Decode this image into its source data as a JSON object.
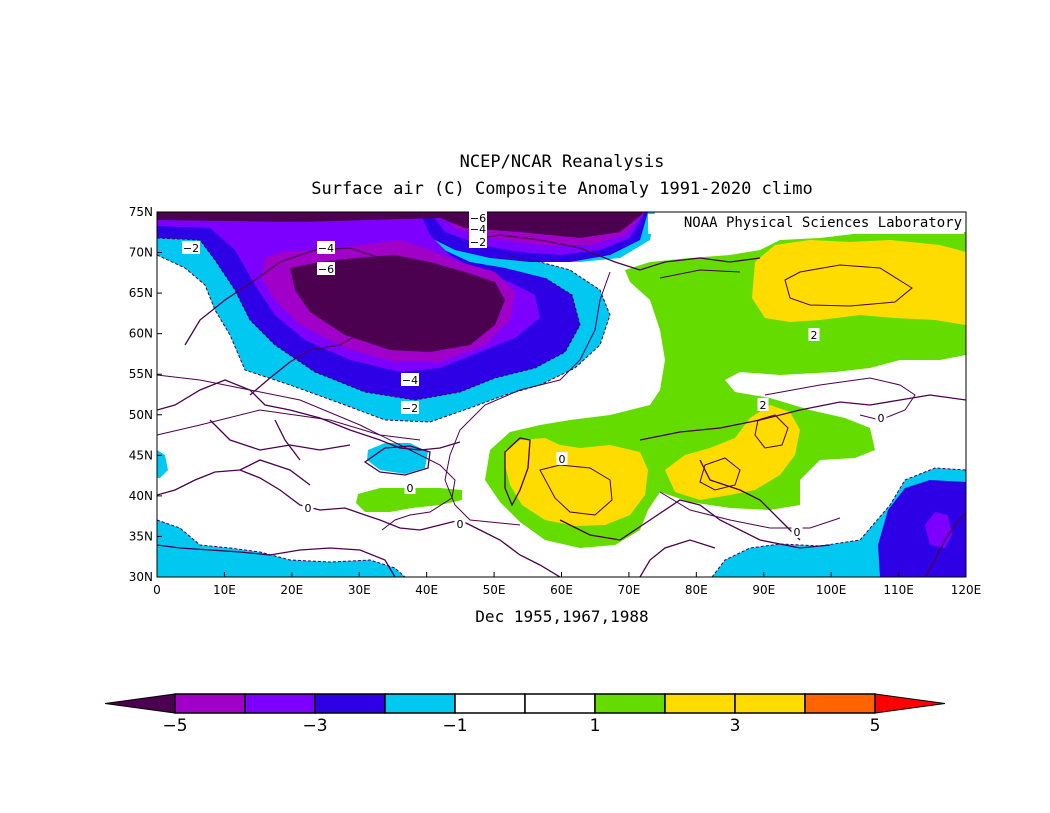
{
  "title": "NCEP/NCAR Reanalysis",
  "subtitle": "Surface air (C) Composite Anomaly 1991-2020 climo",
  "credit": "NOAA Physical Sciences Laboratory",
  "period_label": "Dec 1955,1967,1988",
  "map": {
    "lon_range": [
      0,
      120
    ],
    "lat_range": [
      30,
      75
    ],
    "lon_ticks": [
      "0",
      "10E",
      "20E",
      "30E",
      "40E",
      "50E",
      "60E",
      "70E",
      "80E",
      "90E",
      "100E",
      "110E",
      "120E"
    ],
    "lat_ticks": [
      "30N",
      "35N",
      "40N",
      "45N",
      "50N",
      "55N",
      "60N",
      "65N",
      "70N",
      "75N"
    ],
    "contour_labels": [
      "-6",
      "-4",
      "-2",
      "-2",
      "-4",
      "-6",
      "-4",
      "-2",
      "2",
      "2",
      "0",
      "0",
      "0",
      "0",
      "0",
      "0"
    ]
  },
  "colorbar": {
    "labels": [
      "-5",
      "-3",
      "-1",
      "1",
      "3",
      "5"
    ],
    "colors": [
      "#a000c8",
      "#7d00ff",
      "#2d00e6",
      "#00c8f0",
      "#ffffff",
      "#ffffff",
      "#64dc00",
      "#ffdc00",
      "#ffdc00",
      "#ff6400"
    ],
    "low_extend_color": "#4b0050",
    "high_extend_color": "#ff0000"
  },
  "fill_colors": {
    "minus6": "#4b0050",
    "minus4": "#a000c8",
    "minus3": "#7d00ff",
    "minus2": "#2d00e6",
    "minus1": "#00c8f0",
    "plus1": "#64dc00",
    "plus2": "#ffdc00"
  }
}
